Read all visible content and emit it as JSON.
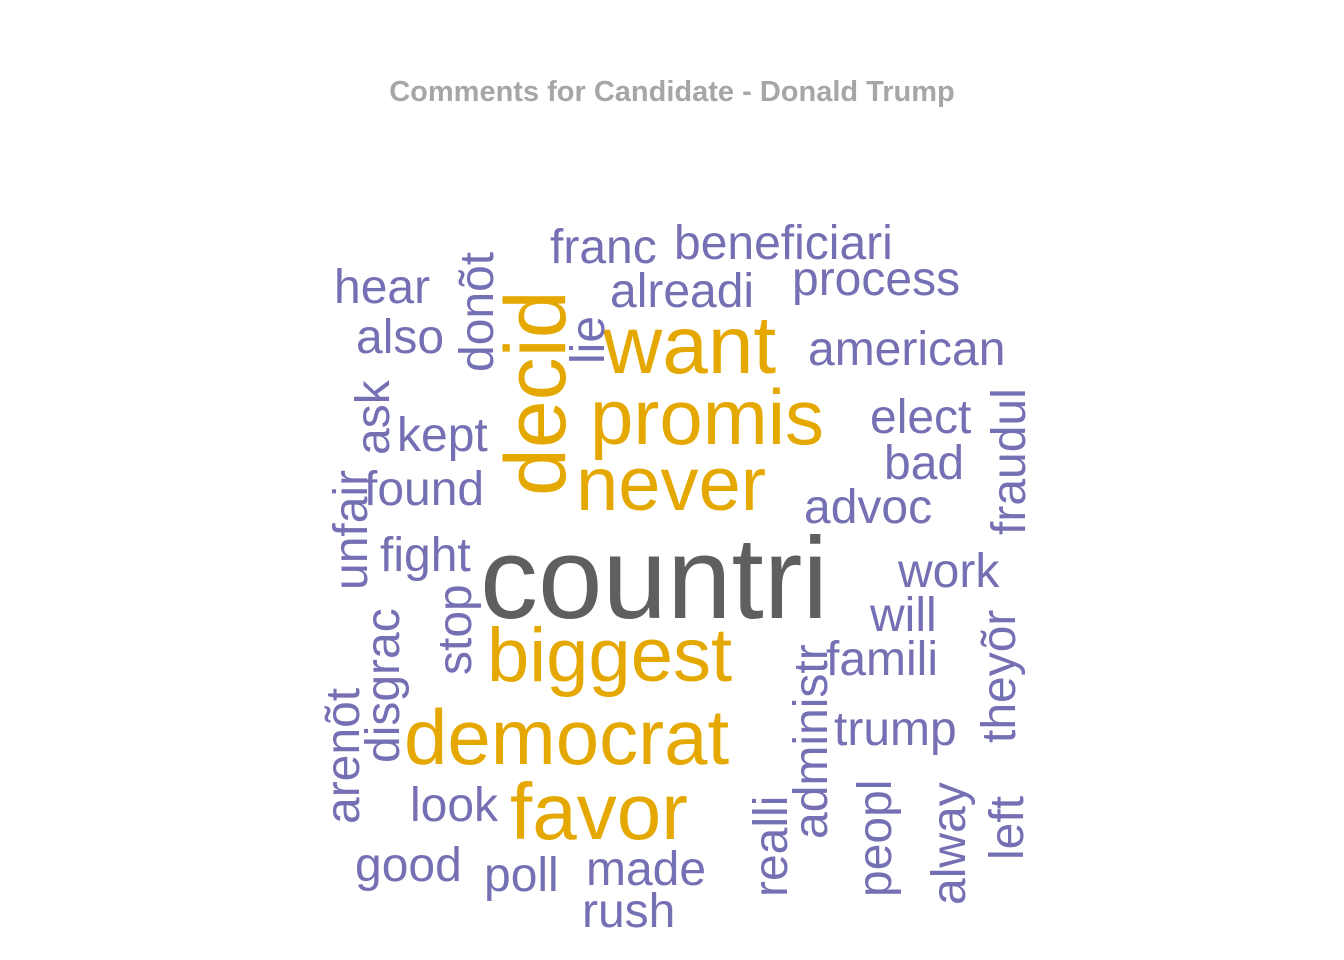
{
  "chart_data": {
    "type": "wordcloud",
    "title": "Comments for Candidate - Donald Trump",
    "colors": {
      "top": "#5f5f5f",
      "high": "#e5a800",
      "low": "#7570b3"
    },
    "words": [
      {
        "text": "countri",
        "tier": "top",
        "vertical": false
      },
      {
        "text": "want",
        "tier": "high",
        "vertical": false
      },
      {
        "text": "promis",
        "tier": "high",
        "vertical": false
      },
      {
        "text": "never",
        "tier": "high",
        "vertical": false
      },
      {
        "text": "biggest",
        "tier": "high",
        "vertical": false
      },
      {
        "text": "democrat",
        "tier": "high",
        "vertical": false
      },
      {
        "text": "favor",
        "tier": "high",
        "vertical": false
      },
      {
        "text": "decid",
        "tier": "high",
        "vertical": true
      },
      {
        "text": "franc",
        "tier": "low",
        "vertical": false
      },
      {
        "text": "beneficiari",
        "tier": "low",
        "vertical": false
      },
      {
        "text": "hear",
        "tier": "low",
        "vertical": false
      },
      {
        "text": "alreadi",
        "tier": "low",
        "vertical": false
      },
      {
        "text": "process",
        "tier": "low",
        "vertical": false
      },
      {
        "text": "also",
        "tier": "low",
        "vertical": false
      },
      {
        "text": "american",
        "tier": "low",
        "vertical": false
      },
      {
        "text": "kept",
        "tier": "low",
        "vertical": false
      },
      {
        "text": "elect",
        "tier": "low",
        "vertical": false
      },
      {
        "text": "bad",
        "tier": "low",
        "vertical": false
      },
      {
        "text": "found",
        "tier": "low",
        "vertical": false
      },
      {
        "text": "advoc",
        "tier": "low",
        "vertical": false
      },
      {
        "text": "fight",
        "tier": "low",
        "vertical": false
      },
      {
        "text": "work",
        "tier": "low",
        "vertical": false
      },
      {
        "text": "will",
        "tier": "low",
        "vertical": false
      },
      {
        "text": "famili",
        "tier": "low",
        "vertical": false
      },
      {
        "text": "trump",
        "tier": "low",
        "vertical": false
      },
      {
        "text": "look",
        "tier": "low",
        "vertical": false
      },
      {
        "text": "good",
        "tier": "low",
        "vertical": false
      },
      {
        "text": "poll",
        "tier": "low",
        "vertical": false
      },
      {
        "text": "made",
        "tier": "low",
        "vertical": false
      },
      {
        "text": "rush",
        "tier": "low",
        "vertical": false
      },
      {
        "text": "donõt",
        "tier": "low",
        "vertical": true
      },
      {
        "text": "lie",
        "tier": "low",
        "vertical": true
      },
      {
        "text": "ask",
        "tier": "low",
        "vertical": true
      },
      {
        "text": "unfair",
        "tier": "low",
        "vertical": true
      },
      {
        "text": "fraudul",
        "tier": "low",
        "vertical": true
      },
      {
        "text": "stop",
        "tier": "low",
        "vertical": true
      },
      {
        "text": "disgrac",
        "tier": "low",
        "vertical": true
      },
      {
        "text": "arenõt",
        "tier": "low",
        "vertical": true
      },
      {
        "text": "administr",
        "tier": "low",
        "vertical": true
      },
      {
        "text": "theyõr",
        "tier": "low",
        "vertical": true
      },
      {
        "text": "realli",
        "tier": "low",
        "vertical": true
      },
      {
        "text": "peopl",
        "tier": "low",
        "vertical": true
      },
      {
        "text": "alway",
        "tier": "low",
        "vertical": true
      },
      {
        "text": "left",
        "tier": "low",
        "vertical": true
      }
    ]
  }
}
